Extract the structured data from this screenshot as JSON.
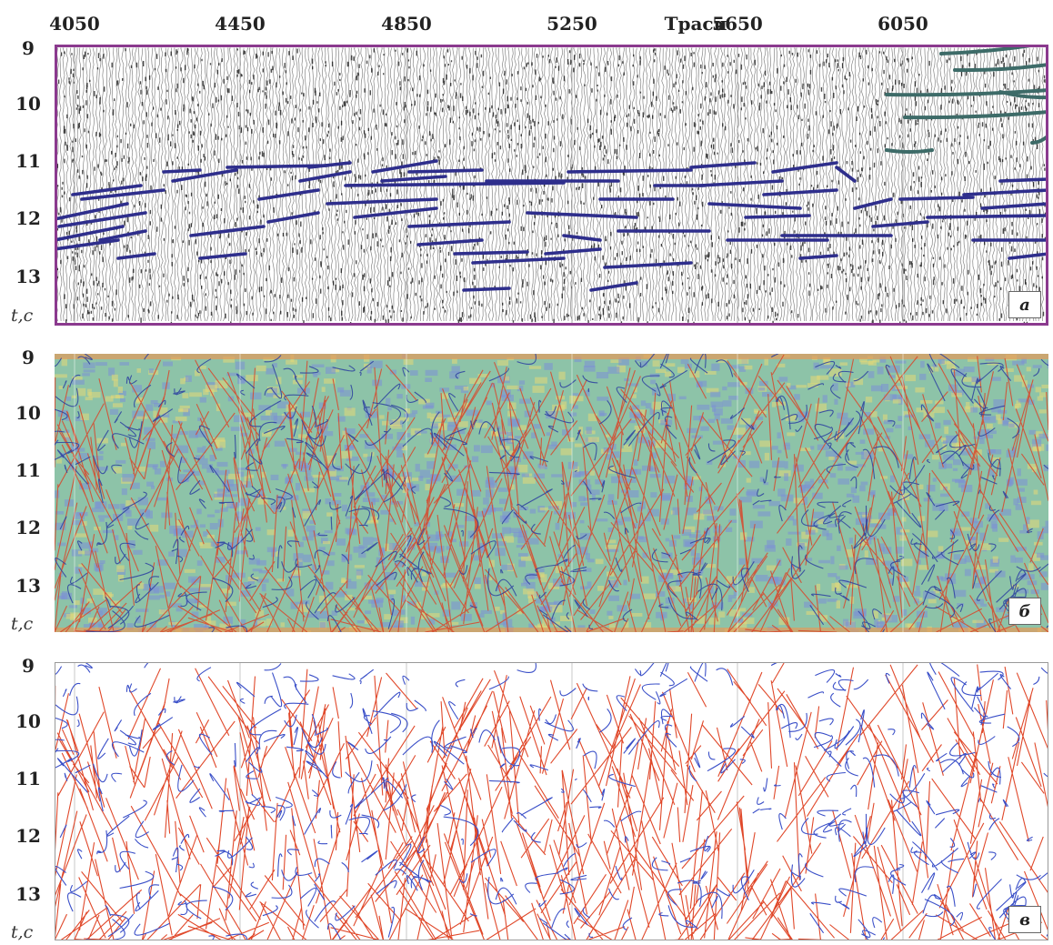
{
  "top_axis": {
    "trace_numbers": [
      "4050",
      "4450",
      "4850",
      "5250",
      "5650",
      "6050"
    ],
    "unit": "Траси"
  },
  "y_axis": {
    "ticks": [
      "9",
      "10",
      "11",
      "12",
      "13"
    ],
    "unit": "t,c"
  },
  "panels": [
    {
      "id": "a",
      "letter": "а",
      "frame_color": "#8b3a8e",
      "horizon_color": "#2e2e8c",
      "upper_horizon_color": "#3d6b68"
    },
    {
      "id": "b",
      "letter": "б",
      "bg_colors": [
        "#e5d877",
        "#8dc3a8",
        "#7b8fd6"
      ],
      "line_colors": [
        "#d8462a",
        "#2b3fa0"
      ]
    },
    {
      "id": "c",
      "letter": "в",
      "line_colors": [
        "#e0482a",
        "#3a4fc8"
      ]
    }
  ]
}
